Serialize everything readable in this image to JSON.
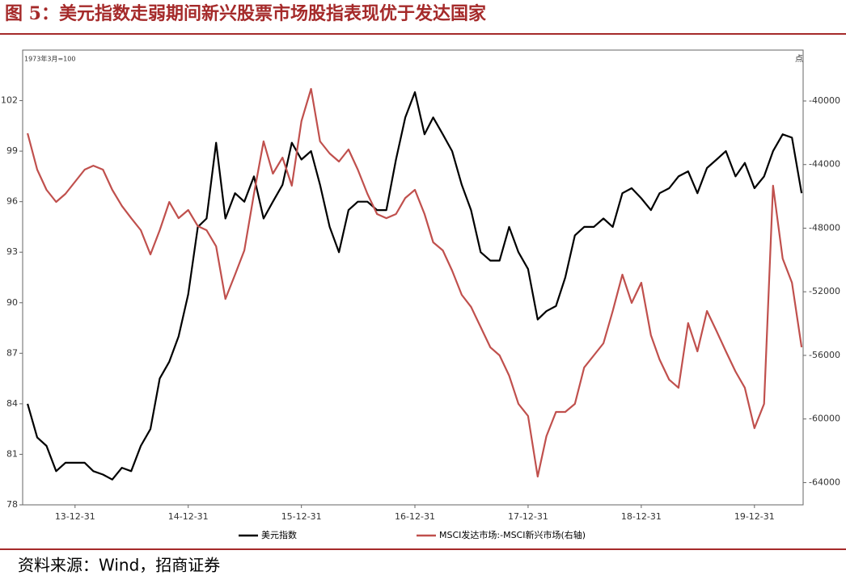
{
  "title": "图 5：美元指数走弱期间新兴股票市场股指表现优于发达国家",
  "source": "资料来源：Wind，招商证券",
  "chart_data": {
    "type": "line",
    "left_axis_label": "1973年3月=100",
    "right_axis_label": "点",
    "x": [
      "13-07-31",
      "13-08-31",
      "13-09-30",
      "13-10-31",
      "13-11-30",
      "13-12-31",
      "14-01-31",
      "14-02-28",
      "14-03-31",
      "14-04-30",
      "14-05-31",
      "14-06-30",
      "14-07-31",
      "14-08-31",
      "14-09-30",
      "14-10-31",
      "14-11-30",
      "14-12-31",
      "15-01-31",
      "15-02-28",
      "15-03-31",
      "15-04-30",
      "15-05-31",
      "15-06-30",
      "15-07-31",
      "15-08-31",
      "15-09-30",
      "15-10-31",
      "15-11-30",
      "15-12-31",
      "16-01-31",
      "16-02-29",
      "16-03-31",
      "16-04-30",
      "16-05-31",
      "16-06-30",
      "16-07-31",
      "16-08-31",
      "16-09-30",
      "16-10-31",
      "16-11-30",
      "16-12-31",
      "17-01-31",
      "17-02-28",
      "17-03-31",
      "17-04-30",
      "17-05-31",
      "17-06-30",
      "17-07-31",
      "17-08-31",
      "17-09-30",
      "17-10-31",
      "17-11-30",
      "17-12-31",
      "18-01-31",
      "18-02-28",
      "18-03-31",
      "18-04-30",
      "18-05-31",
      "18-06-30",
      "18-07-31",
      "18-08-31",
      "18-09-30",
      "18-10-31",
      "18-11-30",
      "18-12-31",
      "19-01-31",
      "19-02-28",
      "19-03-31",
      "19-04-30",
      "19-05-31",
      "19-06-30",
      "19-07-31",
      "19-08-31",
      "19-09-30",
      "19-10-31",
      "19-11-30",
      "19-12-31",
      "20-01-31",
      "20-02-29",
      "20-03-31",
      "20-04-30",
      "20-05-31"
    ],
    "xlim": [
      "13-07-15",
      "20-06-05"
    ],
    "xticks": [
      "13-12-31",
      "14-12-31",
      "15-12-31",
      "16-12-31",
      "17-12-31",
      "18-12-31",
      "19-12-31"
    ],
    "ylim": [
      78,
      105
    ],
    "yticks": [
      78,
      81,
      84,
      87,
      90,
      93,
      96,
      99,
      102
    ],
    "y2lim": [
      -65400,
      -36800
    ],
    "y2ticks": [
      -64000,
      -60000,
      -56000,
      -52000,
      -48000,
      -44000,
      -40000
    ],
    "series": [
      {
        "name": "美元指数",
        "color": "#000000",
        "values": [
          84,
          82,
          81.5,
          80,
          80.5,
          80.5,
          80.5,
          80,
          79.8,
          79.5,
          80.2,
          80,
          81.5,
          82.5,
          85.5,
          86.5,
          88,
          90.5,
          94.5,
          95,
          99.5,
          95,
          96.5,
          96,
          97.5,
          95,
          96,
          97,
          99.5,
          98.5,
          99,
          97,
          94.5,
          93,
          95.5,
          96,
          96,
          95.5,
          95.5,
          98.5,
          101,
          102.5,
          100,
          101,
          100,
          99,
          97,
          95.5,
          93,
          92.5,
          92.5,
          94.5,
          93,
          92,
          89,
          89.5,
          89.8,
          91.5,
          94,
          94.5,
          94.5,
          95,
          94.5,
          96.5,
          96.8,
          96.2,
          95.5,
          96.5,
          96.8,
          97.5,
          97.8,
          96.5,
          98,
          98.5,
          99,
          97.5,
          98.3,
          96.8,
          97.5,
          99,
          100,
          99.8,
          96.5
        ]
      },
      {
        "name": "MSCI发达市场:-MSCI新兴市场(右轴)",
        "color": "#c0504d",
        "axis": "y2",
        "values": [
          -42030,
          -44320,
          -45590,
          -46350,
          -45840,
          -45080,
          -44320,
          -44070,
          -44320,
          -45590,
          -46600,
          -47370,
          -48130,
          -49650,
          -48130,
          -46350,
          -47370,
          -46860,
          -47870,
          -48130,
          -49140,
          -52450,
          -50920,
          -49400,
          -45840,
          -42540,
          -44570,
          -43560,
          -45330,
          -41270,
          -39240,
          -42540,
          -43300,
          -43810,
          -43050,
          -44320,
          -45840,
          -47110,
          -47370,
          -47110,
          -46100,
          -45590,
          -47110,
          -48890,
          -49400,
          -50670,
          -52190,
          -52950,
          -54220,
          -55490,
          -56000,
          -57270,
          -59050,
          -59810,
          -63620,
          -61080,
          -59560,
          -59560,
          -59050,
          -56760,
          -56000,
          -55240,
          -53210,
          -50920,
          -52700,
          -51430,
          -54730,
          -56260,
          -57530,
          -58040,
          -53970,
          -55750,
          -53210,
          -54480,
          -55750,
          -57020,
          -58040,
          -60580,
          -59050,
          -45330,
          -49910,
          -51430,
          -55490
        ]
      }
    ]
  }
}
